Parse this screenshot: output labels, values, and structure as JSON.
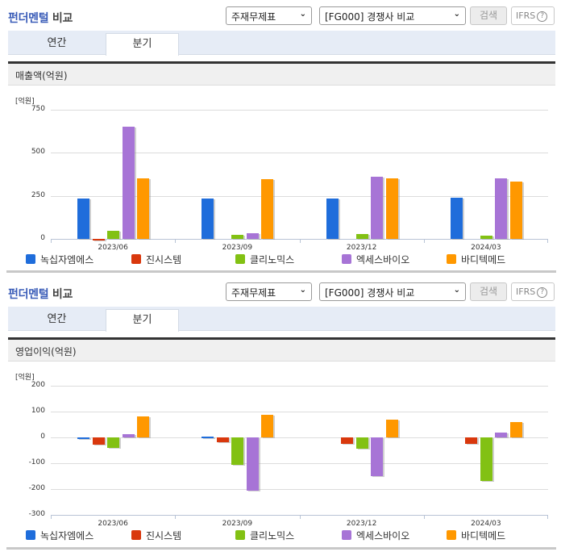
{
  "header": {
    "title_part1": "펀더멘털",
    "title_part2": " 비교",
    "statement_select": "주재무제표",
    "compare_select": "[FG000] 경쟁사 비교",
    "search_label": "검색",
    "ifrs_label": "IFRS",
    "help_icon": "?"
  },
  "tabs": [
    {
      "label": "연간",
      "active": false
    },
    {
      "label": "분기",
      "active": true
    }
  ],
  "colors": {
    "녹십자엠에스": "#1f6ddb",
    "진시스템": "#d9380d",
    "클리노믹스": "#82c113",
    "엑세스바이오": "#a774d6",
    "바디텍메드": "#ff9800"
  },
  "legend": [
    "녹십자엠에스",
    "진시스템",
    "클리노믹스",
    "엑세스바이오",
    "바디텍메드"
  ],
  "chart_data": [
    {
      "type": "bar",
      "title": "매출액(억원)",
      "unit_label": "[억원]",
      "categories": [
        "2023/06",
        "2023/09",
        "2023/12",
        "2024/03"
      ],
      "yticks": [
        750,
        500,
        250,
        0
      ],
      "ylim": [
        0,
        750
      ],
      "grid": true,
      "legend_position": "bottom",
      "series": [
        {
          "name": "녹십자엠에스",
          "color": "#1f6ddb",
          "values": [
            234,
            234,
            234,
            238
          ]
        },
        {
          "name": "진시스템",
          "color": "#d9380d",
          "values": [
            2,
            0,
            0,
            0
          ]
        },
        {
          "name": "클리노믹스",
          "color": "#82c113",
          "values": [
            47,
            23,
            28,
            19
          ]
        },
        {
          "name": "엑세스바이오",
          "color": "#a774d6",
          "values": [
            651,
            33,
            361,
            352
          ]
        },
        {
          "name": "바디텍메드",
          "color": "#ff9800",
          "values": [
            352,
            347,
            352,
            333
          ]
        }
      ]
    },
    {
      "type": "bar",
      "title": "영업이익(억원)",
      "unit_label": "[억원]",
      "categories": [
        "2023/06",
        "2023/09",
        "2023/12",
        "2024/03"
      ],
      "yticks": [
        200,
        100,
        0,
        -100,
        -200,
        -300
      ],
      "ylim": [
        -300,
        200
      ],
      "grid": true,
      "legend_position": "bottom",
      "series": [
        {
          "name": "녹십자엠에스",
          "color": "#1f6ddb",
          "values": [
            -3,
            4,
            0,
            0
          ]
        },
        {
          "name": "진시스템",
          "color": "#d9380d",
          "values": [
            -28,
            -18,
            -25,
            -25
          ]
        },
        {
          "name": "클리노믹스",
          "color": "#82c113",
          "values": [
            -40,
            -105,
            -45,
            -170
          ]
        },
        {
          "name": "엑세스바이오",
          "color": "#a774d6",
          "values": [
            12,
            -205,
            -150,
            20
          ]
        },
        {
          "name": "바디텍메드",
          "color": "#ff9800",
          "values": [
            80,
            87,
            68,
            60
          ]
        }
      ]
    }
  ]
}
